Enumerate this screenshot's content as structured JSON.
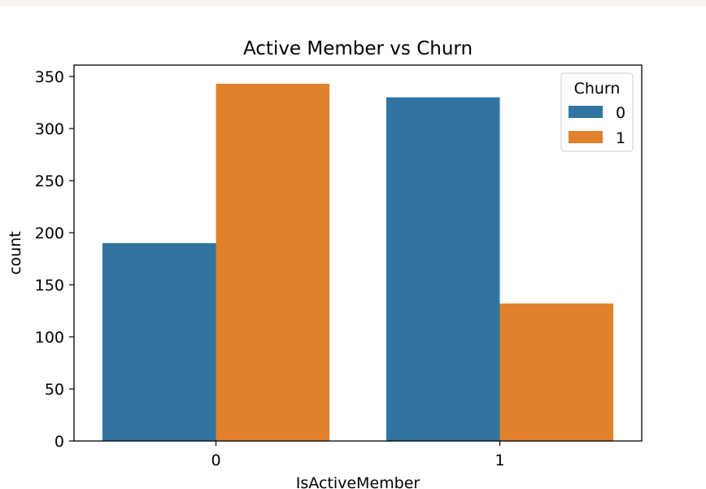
{
  "page": {
    "background": "#ffffff",
    "strip_color": "#f8f5f0"
  },
  "chart_data": {
    "type": "bar",
    "title": "Active Member vs Churn",
    "xlabel": "IsActiveMember",
    "ylabel": "count",
    "categories": [
      "0",
      "1"
    ],
    "series": [
      {
        "name": "0",
        "color": "#3274a1",
        "values": [
          190,
          330
        ]
      },
      {
        "name": "1",
        "color": "#e1812c",
        "values": [
          343,
          132
        ]
      }
    ],
    "ylim": [
      0,
      360
    ],
    "yticks": [
      0,
      50,
      100,
      150,
      200,
      250,
      300,
      350
    ],
    "grid": false,
    "legend": {
      "title": "Churn",
      "placement": "top-right",
      "entries": [
        "0",
        "1"
      ]
    }
  }
}
